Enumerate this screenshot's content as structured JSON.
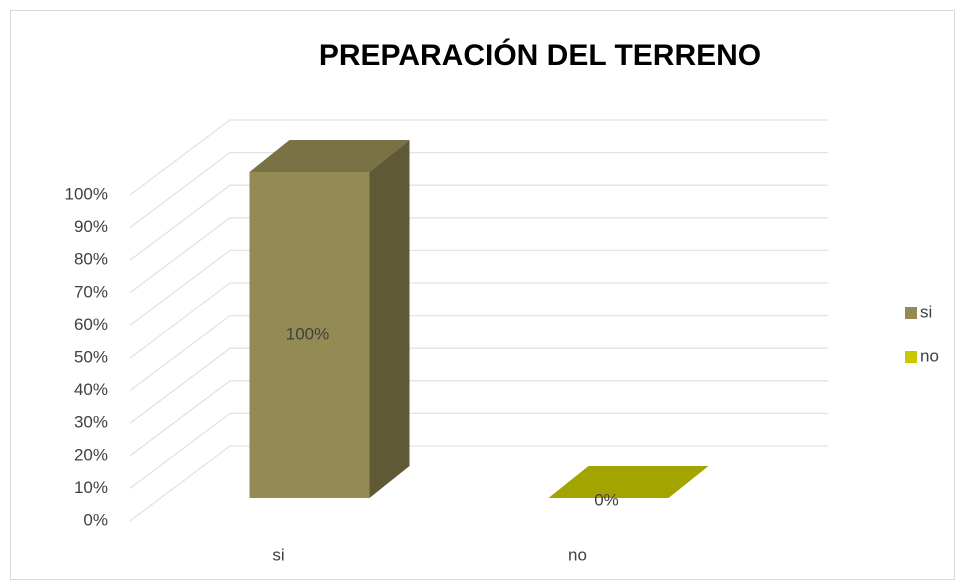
{
  "chart_data": {
    "type": "bar3d",
    "title": "PREPARACIÓN DEL TERRENO",
    "categories": [
      "si",
      "no"
    ],
    "values": [
      100,
      0
    ],
    "value_labels": [
      "100%",
      "0%"
    ],
    "colors": [
      "#948b54",
      "#c8c800"
    ],
    "ylim": [
      0,
      100
    ],
    "yticks": [
      {
        "value": 0,
        "label": "0%"
      },
      {
        "value": 10,
        "label": "10%"
      },
      {
        "value": 20,
        "label": "20%"
      },
      {
        "value": 30,
        "label": "30%"
      },
      {
        "value": 40,
        "label": "40%"
      },
      {
        "value": 50,
        "label": "50%"
      },
      {
        "value": 60,
        "label": "60%"
      },
      {
        "value": 70,
        "label": "70%"
      },
      {
        "value": 80,
        "label": "80%"
      },
      {
        "value": 90,
        "label": "90%"
      },
      {
        "value": 100,
        "label": "100%"
      }
    ],
    "grid": true,
    "legend": "right"
  }
}
